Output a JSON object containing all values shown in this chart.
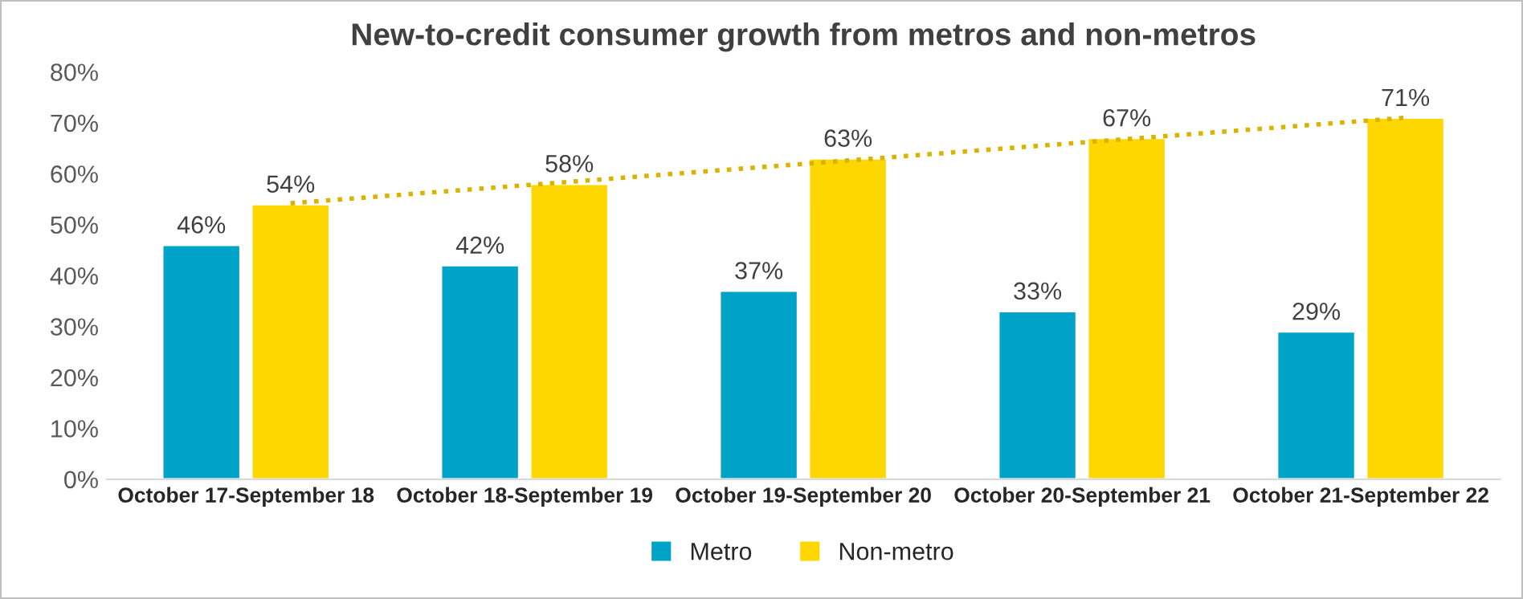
{
  "chart_data": {
    "type": "bar",
    "title": "New-to-credit consumer growth from metros and non-metros",
    "categories": [
      "October 17-September 18",
      "October 18-September 19",
      "October 19-September 20",
      "October 20-September 21",
      "October 21-September 22"
    ],
    "series": [
      {
        "name": "Metro",
        "color": "#00a3c8",
        "values": [
          46,
          42,
          37,
          33,
          29
        ],
        "value_labels": [
          "46%",
          "42%",
          "37%",
          "33%",
          "29%"
        ]
      },
      {
        "name": "Non-metro",
        "color": "#ffd700",
        "values": [
          54,
          58,
          63,
          67,
          71
        ],
        "value_labels": [
          "54%",
          "58%",
          "63%",
          "67%",
          "71%"
        ]
      },
      {
        "type": "line",
        "color": "#d9b300",
        "line_style": "dotted",
        "values": [
          54.2,
          58.4,
          62.6,
          66.8,
          71.0
        ]
      }
    ],
    "ylim": [
      0,
      80
    ],
    "yticks": [
      {
        "value": 0,
        "label": "0%"
      },
      {
        "value": 10,
        "label": "10%"
      },
      {
        "value": 20,
        "label": "20%"
      },
      {
        "value": 30,
        "label": "30%"
      },
      {
        "value": 40,
        "label": "40%"
      },
      {
        "value": 50,
        "label": "50%"
      },
      {
        "value": 60,
        "label": "60%"
      },
      {
        "value": 70,
        "label": "70%"
      },
      {
        "value": 80,
        "label": "80%"
      }
    ],
    "grid": false,
    "legend": "bottom"
  }
}
